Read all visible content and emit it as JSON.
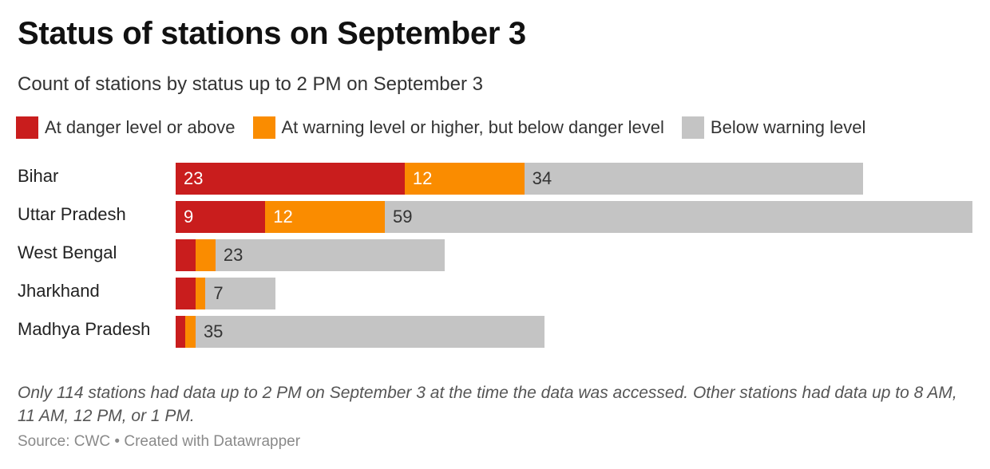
{
  "title": "Status of stations on September 3",
  "subtitle": "Count of stations by status up to 2 PM on September 3",
  "legend": [
    {
      "label": "At danger level or above",
      "color": "#c91d1d"
    },
    {
      "label": "At warning level or higher, but below danger level",
      "color": "#fa8c00"
    },
    {
      "label": "Below warning level",
      "color": "#c4c4c4"
    }
  ],
  "note": "Only 114 stations had data up to 2 PM on September 3 at the time the data was accessed. Other stations had data up to 8 AM, 11 AM, 12 PM, or 1 PM.",
  "source": "Source: CWC • Created with Datawrapper",
  "chart_data": {
    "type": "bar",
    "orientation": "horizontal",
    "stacked": true,
    "categories": [
      "Bihar",
      "Uttar Pradesh",
      "West Bengal",
      "Jharkhand",
      "Madhya Pradesh"
    ],
    "series": [
      {
        "name": "At danger level or above",
        "color": "#c91d1d",
        "values": [
          23,
          9,
          2,
          2,
          1
        ],
        "labels": [
          "23",
          "9",
          "",
          "",
          ""
        ]
      },
      {
        "name": "At warning level or higher, but below danger level",
        "color": "#fa8c00",
        "values": [
          12,
          12,
          2,
          1,
          1
        ],
        "labels": [
          "12",
          "12",
          "",
          "",
          ""
        ]
      },
      {
        "name": "Below warning level",
        "color": "#c4c4c4",
        "values": [
          34,
          59,
          23,
          7,
          35
        ],
        "labels": [
          "34",
          "59",
          "23",
          "7",
          "35"
        ]
      }
    ],
    "xlim": [
      0,
      80
    ],
    "grid": false,
    "legend_position": "top-left"
  }
}
